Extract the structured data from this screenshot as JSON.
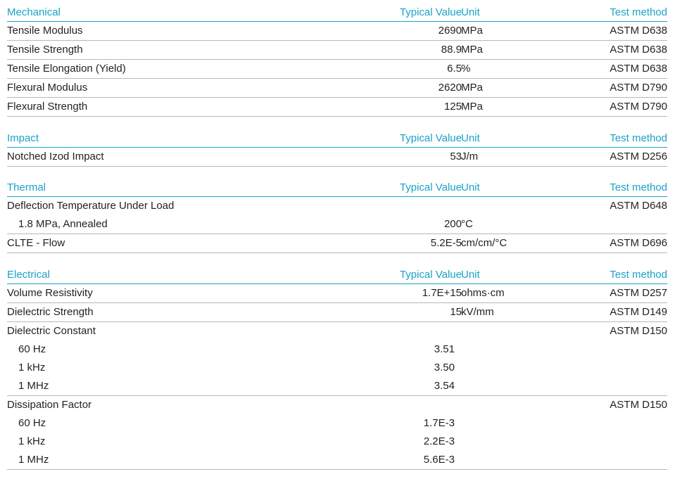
{
  "sections": [
    {
      "id": "mechanical",
      "header": {
        "name": "Mechanical",
        "value": "Typical Value",
        "unit": "Unit",
        "test": "Test method"
      },
      "rows": [
        {
          "name": "Tensile Modulus",
          "value": "2690",
          "unit": "MPa",
          "test": "ASTM D638"
        },
        {
          "name": "Tensile Strength",
          "value": "88.9",
          "unit": "MPa",
          "test": "ASTM D638"
        },
        {
          "name": "Tensile Elongation (Yield)",
          "value": "6.5",
          "unit": "%",
          "test": "ASTM D638"
        },
        {
          "name": "Flexural Modulus",
          "value": "2620",
          "unit": "MPa",
          "test": "ASTM D790"
        },
        {
          "name": "Flexural Strength",
          "value": "125",
          "unit": "MPa",
          "test": "ASTM D790"
        }
      ]
    },
    {
      "id": "impact",
      "header": {
        "name": "Impact",
        "value": "Typical Value",
        "unit": "Unit",
        "test": "Test method"
      },
      "rows": [
        {
          "name": "Notched Izod Impact",
          "value": "53",
          "unit": "J/m",
          "test": "ASTM D256"
        }
      ]
    },
    {
      "id": "thermal",
      "header": {
        "name": "Thermal",
        "value": "Typical Value",
        "unit": "Unit",
        "test": "Test method"
      },
      "rows": [
        {
          "name": "Deflection Temperature Under Load",
          "value": "",
          "unit": "",
          "test": "ASTM D648"
        },
        {
          "name": "1.8 MPa, Annealed",
          "value": "200",
          "unit": "°C",
          "test": ""
        },
        {
          "name": "CLTE - Flow",
          "value": "5.2E-5",
          "unit": "cm/cm/°C",
          "test": "ASTM D696"
        }
      ]
    },
    {
      "id": "electrical",
      "header": {
        "name": "Electrical",
        "value": "Typical Value",
        "unit": "Unit",
        "test": "Test method"
      },
      "rows": [
        {
          "name": "Volume Resistivity",
          "value": "1.7E+15",
          "unit": "ohms·cm",
          "test": "ASTM D257"
        },
        {
          "name": "Dielectric Strength",
          "value": "15",
          "unit": "kV/mm",
          "test": "ASTM D149"
        },
        {
          "name": "Dielectric Constant",
          "value": "",
          "unit": "",
          "test": "ASTM D150"
        },
        {
          "name": "60 Hz",
          "value": "3.51",
          "unit": "",
          "test": ""
        },
        {
          "name": "1 kHz",
          "value": "3.50",
          "unit": "",
          "test": ""
        },
        {
          "name": "1 MHz",
          "value": "3.54",
          "unit": "",
          "test": ""
        },
        {
          "name": "Dissipation Factor",
          "value": "",
          "unit": "",
          "test": "ASTM D150"
        },
        {
          "name": "60 Hz",
          "value": "1.7E-3",
          "unit": "",
          "test": ""
        },
        {
          "name": "1 kHz",
          "value": "2.2E-3",
          "unit": "",
          "test": ""
        },
        {
          "name": "1 MHz",
          "value": "5.6E-3",
          "unit": "",
          "test": ""
        }
      ]
    }
  ],
  "colors": {
    "accent": "#1aa2c8",
    "text": "#231f20",
    "rule": "#b8b8b8"
  }
}
